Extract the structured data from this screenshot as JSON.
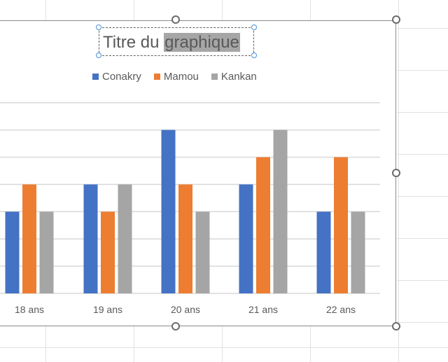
{
  "chart_title": {
    "prefix": "Titre du ",
    "selected": "graphique"
  },
  "colors": {
    "conakry": "#4472c4",
    "mamou": "#ed7d31",
    "kankan": "#a5a5a5",
    "gridline": "#d9d9d9",
    "text": "#595959",
    "selection_highlight": "#a6a6a6",
    "handle_blue": "#4a90d9"
  },
  "legend": [
    "Conakry",
    "Mamou",
    "Kankan"
  ],
  "chart_data": {
    "type": "bar",
    "categories": [
      "18 ans",
      "19 ans",
      "20 ans",
      "21 ans",
      "22 ans"
    ],
    "series": [
      {
        "name": "Conakry",
        "values": [
          3,
          4,
          6,
          4,
          3
        ]
      },
      {
        "name": "Mamou",
        "values": [
          4,
          3,
          4,
          5,
          5
        ]
      },
      {
        "name": "Kankan",
        "values": [
          3,
          4,
          3,
          6,
          3
        ]
      }
    ],
    "title": "Titre du graphique",
    "xlabel": "",
    "ylabel": "",
    "ylim": [
      0,
      7
    ],
    "grid": true,
    "legend_position": "top"
  }
}
